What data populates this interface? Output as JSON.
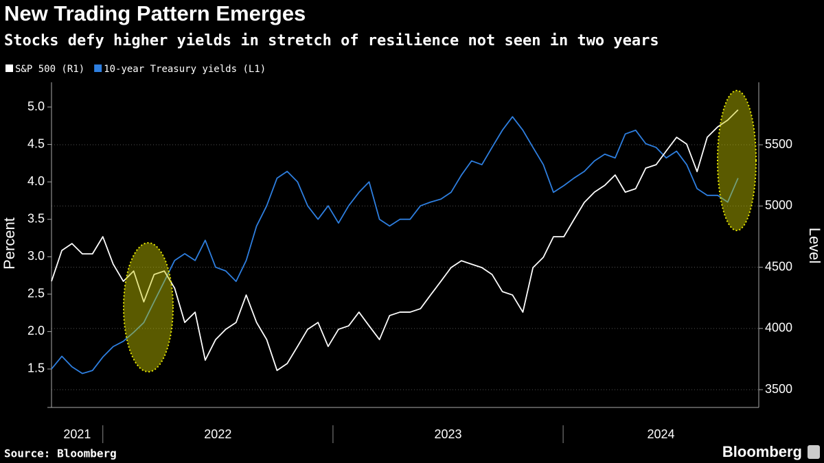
{
  "chart_data": {
    "type": "line",
    "title": "New Trading Pattern Emerges",
    "subtitle": "Stocks defy higher yields in stretch of resilience not seen in two years",
    "ylabel": "Percent",
    "y2label": "Level",
    "source": "Source: Bloomberg",
    "brand": "Bloomberg",
    "x": [
      2021.777,
      2021.822,
      2021.866,
      2021.911,
      2021.955,
      2022.0,
      2022.045,
      2022.089,
      2022.134,
      2022.178,
      2022.223,
      2022.267,
      2022.312,
      2022.356,
      2022.401,
      2022.445,
      2022.49,
      2022.534,
      2022.579,
      2022.623,
      2022.668,
      2022.712,
      2022.757,
      2022.801,
      2022.846,
      2022.89,
      2022.935,
      2022.979,
      2023.024,
      2023.068,
      2023.113,
      2023.157,
      2023.202,
      2023.246,
      2023.291,
      2023.335,
      2023.38,
      2023.424,
      2023.469,
      2023.513,
      2023.558,
      2023.602,
      2023.647,
      2023.691,
      2023.736,
      2023.78,
      2023.825,
      2023.869,
      2023.914,
      2023.958,
      2024.003,
      2024.047,
      2024.092,
      2024.136,
      2024.181,
      2024.226,
      2024.27,
      2024.315,
      2024.359,
      2024.404,
      2024.448,
      2024.493,
      2024.537,
      2024.582,
      2024.626,
      2024.671,
      2024.715,
      2024.76
    ],
    "series": [
      {
        "name": "S&P 500 (R1)",
        "color": "#ffffff",
        "axis": "y2",
        "values": [
          4385,
          4637,
          4693,
          4609,
          4609,
          4749,
          4525,
          4385,
          4469,
          4217,
          4441,
          4469,
          4329,
          4049,
          4133,
          3741,
          3909,
          3993,
          4049,
          4273,
          4049,
          3909,
          3657,
          3713,
          3853,
          3993,
          4049,
          3853,
          3993,
          4021,
          4133,
          4021,
          3909,
          4105,
          4133,
          4133,
          4161,
          4273,
          4385,
          4497,
          4553,
          4525,
          4497,
          4441,
          4301,
          4273,
          4133,
          4497,
          4581,
          4749,
          4749,
          4889,
          5029,
          5113,
          5169,
          5253,
          5113,
          5141,
          5309,
          5337,
          5449,
          5561,
          5505,
          5281,
          5561,
          5645,
          5701,
          5785
        ]
      },
      {
        "name": "10-year Treasury yields (L1)",
        "color": "#2e7fe0",
        "axis": "y",
        "values": [
          1.5,
          1.67,
          1.53,
          1.44,
          1.48,
          1.66,
          1.8,
          1.87,
          1.99,
          2.12,
          2.4,
          2.67,
          2.95,
          3.04,
          2.95,
          3.22,
          2.86,
          2.81,
          2.67,
          2.95,
          3.41,
          3.68,
          4.05,
          4.14,
          4.0,
          3.68,
          3.5,
          3.68,
          3.45,
          3.68,
          3.86,
          4.0,
          3.5,
          3.41,
          3.5,
          3.5,
          3.68,
          3.73,
          3.77,
          3.86,
          4.09,
          4.28,
          4.23,
          4.46,
          4.69,
          4.87,
          4.69,
          4.46,
          4.23,
          3.86,
          3.95,
          4.05,
          4.14,
          4.28,
          4.37,
          4.32,
          4.64,
          4.69,
          4.51,
          4.46,
          4.32,
          4.41,
          4.23,
          3.91,
          3.82,
          3.82,
          3.73,
          4.05
        ]
      }
    ],
    "xlim": [
      2021.777,
      2024.85
    ],
    "xticks": [
      2022,
      2023,
      2024
    ],
    "year_labels": [
      2021,
      2022,
      2023,
      2024
    ],
    "ylim": [
      1.005,
      5.33
    ],
    "yticks": [
      1.5,
      {
        "value": 2,
        "label": "2.0"
      },
      2.5,
      {
        "value": 3,
        "label": "3.0"
      },
      3.5,
      {
        "value": 4,
        "label": "4.0"
      },
      4.5,
      {
        "value": 5,
        "label": "5.0"
      }
    ],
    "y2lim": [
      3366,
      6010
    ],
    "y2ticks": [
      3500,
      4000,
      4500,
      5000,
      5500
    ],
    "grid": true,
    "grid_axis": "y2"
  }
}
